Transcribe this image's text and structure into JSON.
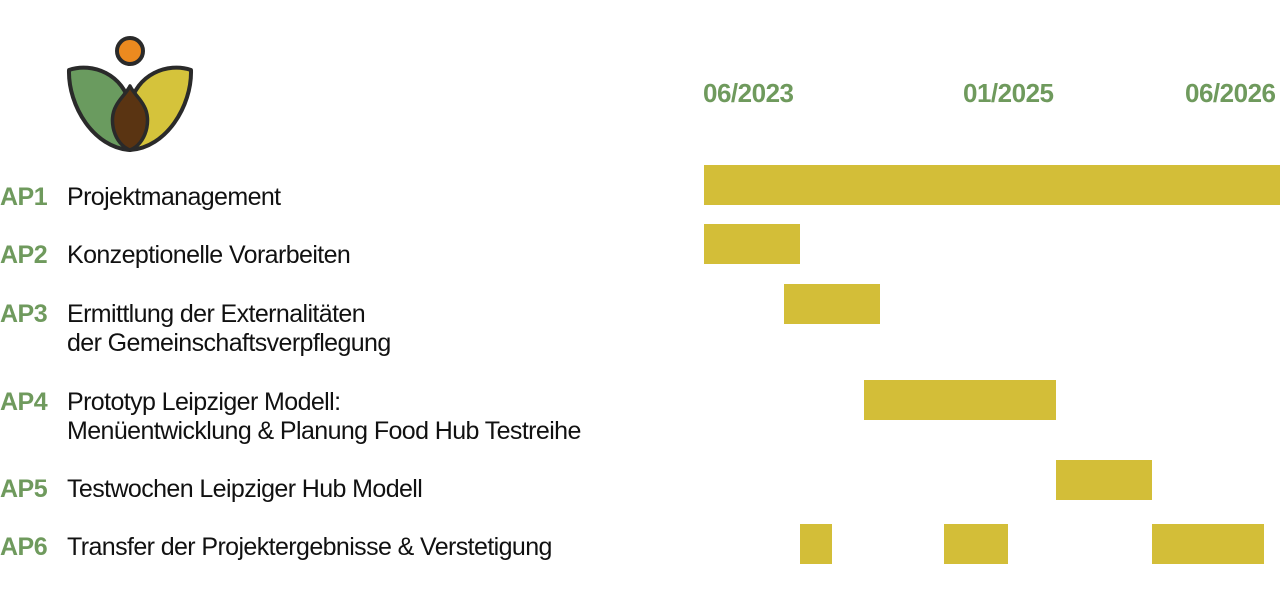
{
  "colors": {
    "accent_green": "#6f9a5d",
    "bar_yellow": "#d3be38",
    "text": "#111111",
    "logo_green": "#6a9b5f",
    "logo_yellow": "#d5c33b",
    "logo_brown": "#5a3412",
    "logo_orange": "#ec8a1f",
    "logo_outline": "#2a2a2a"
  },
  "chart_data": {
    "type": "gantt",
    "x_axis": {
      "ticks": [
        "06/2023",
        "01/2025",
        "06/2026"
      ],
      "start": "2023-06",
      "end": "2026-06"
    },
    "tasks": [
      {
        "code": "AP1",
        "name_lines": [
          "Projektmanagement"
        ],
        "bars": [
          {
            "start": "2023-06",
            "end": "2026-06"
          }
        ]
      },
      {
        "code": "AP2",
        "name_lines": [
          "Konzeptionelle Vorarbeiten"
        ],
        "bars": [
          {
            "start": "2023-06",
            "end": "2023-12"
          }
        ]
      },
      {
        "code": "AP3",
        "name_lines": [
          "Ermittlung der Externalitäten",
          "der Gemeinschaftsverpflegung"
        ],
        "bars": [
          {
            "start": "2023-11",
            "end": "2024-05"
          }
        ]
      },
      {
        "code": "AP4",
        "name_lines": [
          "Prototyp Leipziger Modell:",
          "Menüentwicklung & Planung Food Hub Testreihe"
        ],
        "bars": [
          {
            "start": "2024-04",
            "end": "2025-04"
          }
        ]
      },
      {
        "code": "AP5",
        "name_lines": [
          "Testwochen Leipziger Hub Modell"
        ],
        "bars": [
          {
            "start": "2025-04",
            "end": "2025-10"
          }
        ]
      },
      {
        "code": "AP6",
        "name_lines": [
          "Transfer der Projektergebnisse & Verstetigung"
        ],
        "bars": [
          {
            "start": "2023-12",
            "end": "2024-02"
          },
          {
            "start": "2024-09",
            "end": "2025-01"
          },
          {
            "start": "2025-10",
            "end": "2026-05"
          }
        ]
      }
    ]
  }
}
